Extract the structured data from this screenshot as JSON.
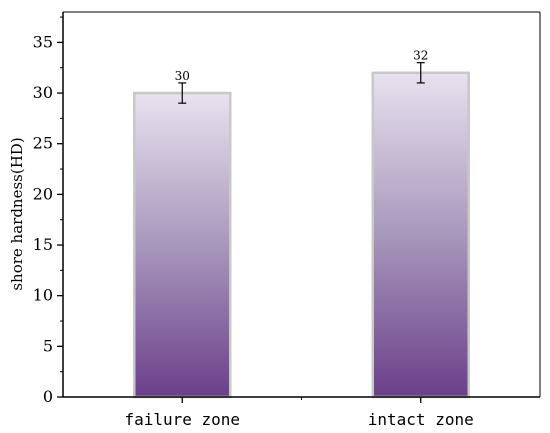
{
  "chart_data": {
    "type": "bar",
    "categories": [
      "failure zone",
      "intact zone"
    ],
    "values": [
      30,
      32
    ],
    "errors": [
      1,
      1
    ],
    "data_labels": [
      "30",
      "32"
    ],
    "ylabel": "shore hardness(HD)",
    "xlabel": "",
    "ylim": [
      0,
      38
    ],
    "yticks": [
      0,
      5,
      10,
      15,
      20,
      25,
      30,
      35
    ],
    "ytick_labels": [
      "0",
      "5",
      "10",
      "15",
      "20",
      "25",
      "30",
      "35"
    ],
    "grid": false,
    "colors": {
      "bar_top": "#e8e2ef",
      "bar_mid": "#a897bc",
      "bar_bottom": "#6b3f8a",
      "bar_outline": "#c8c8c8",
      "axis": "#000000"
    }
  }
}
